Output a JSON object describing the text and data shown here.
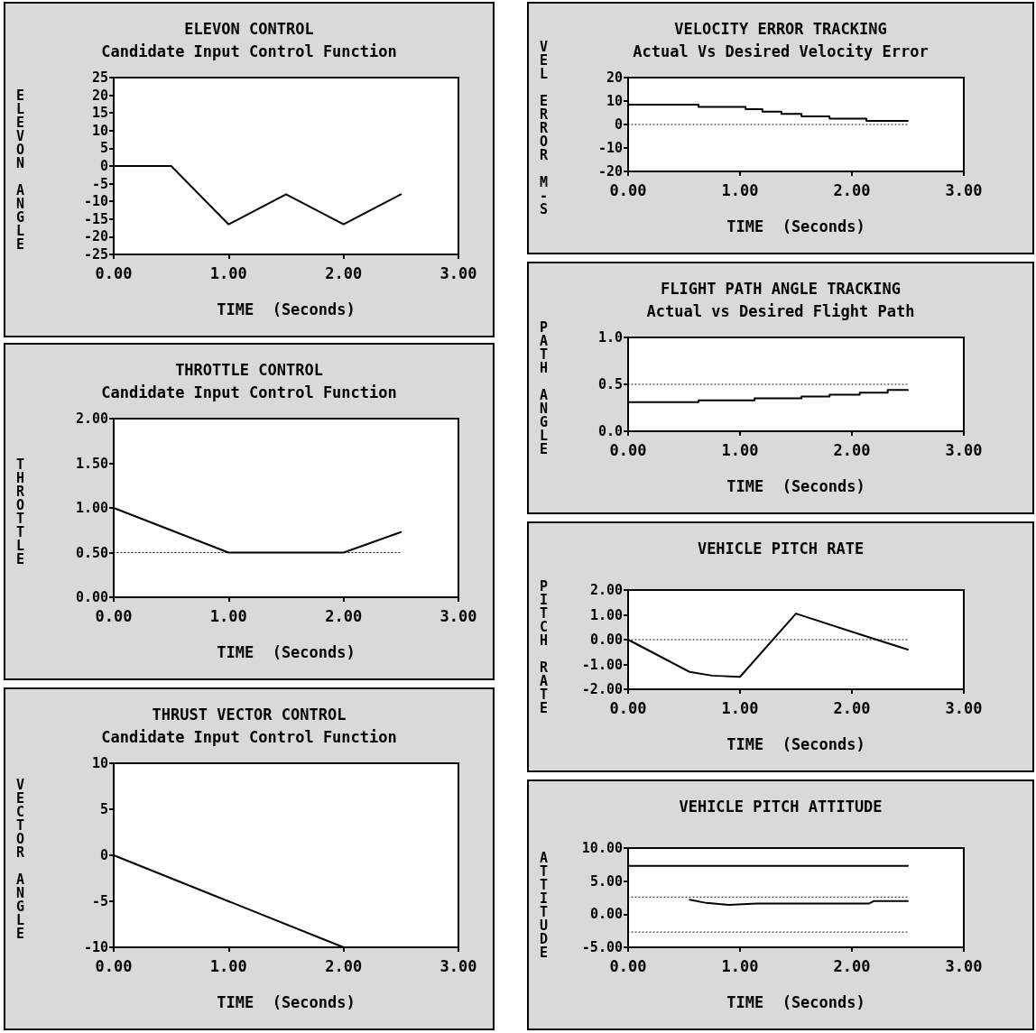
{
  "chart_data": [
    {
      "type": "line",
      "title": "ELEVON CONTROL",
      "subtitle": "Candidate Input Control Function",
      "xlabel": "TIME  (Seconds)",
      "ylabel": "ELEVON ANGLE",
      "xlim": [
        0,
        3
      ],
      "xticks": [
        {
          "value": 0,
          "label": "0.00"
        },
        {
          "value": 1,
          "label": "1.00"
        },
        {
          "value": 2,
          "label": "2.00"
        },
        {
          "value": 3,
          "label": "3.00"
        }
      ],
      "ylim": [
        -25,
        25
      ],
      "yticks": [
        -25,
        -20,
        -15,
        -10,
        -5,
        0,
        5,
        10,
        15,
        20,
        25
      ],
      "marker": "none",
      "series": [
        {
          "color": "#000000",
          "line_style": "solid",
          "x": [
            0,
            0.5,
            1,
            1.5,
            2,
            2.5
          ],
          "values": [
            0,
            0,
            -16.5,
            -8,
            -16.5,
            -8
          ]
        }
      ]
    },
    {
      "type": "line",
      "title": "THROTTLE CONTROL",
      "subtitle": "Candidate Input Control Function",
      "xlabel": "TIME  (Seconds)",
      "ylabel": "THROTTLE",
      "xlim": [
        0,
        3
      ],
      "xticks": [
        {
          "value": 0,
          "label": "0.00"
        },
        {
          "value": 1,
          "label": "1.00"
        },
        {
          "value": 2,
          "label": "2.00"
        },
        {
          "value": 3,
          "label": "3.00"
        }
      ],
      "ylim": [
        0,
        2
      ],
      "yticks": [
        {
          "value": 0,
          "label": "0.00"
        },
        {
          "value": 0.5,
          "label": "0.50"
        },
        {
          "value": 1,
          "label": "1.00"
        },
        {
          "value": 1.5,
          "label": "1.50"
        },
        {
          "value": 2,
          "label": "2.00"
        }
      ],
      "marker": "none",
      "series": [
        {
          "color": "#000000",
          "line_style": "dotted",
          "x": [
            0,
            2.5
          ],
          "values": [
            0.5,
            0.5
          ]
        },
        {
          "color": "#000000",
          "line_style": "solid",
          "x": [
            0,
            1,
            2,
            2.5
          ],
          "values": [
            1,
            0.5,
            0.5,
            0.73
          ]
        }
      ]
    },
    {
      "type": "line",
      "title": "THRUST VECTOR CONTROL",
      "subtitle": "Candidate Input Control Function",
      "xlabel": "TIME  (Seconds)",
      "ylabel": "VECTOR ANGLE",
      "xlim": [
        0,
        3
      ],
      "xticks": [
        {
          "value": 0,
          "label": "0.00"
        },
        {
          "value": 1,
          "label": "1.00"
        },
        {
          "value": 2,
          "label": "2.00"
        },
        {
          "value": 3,
          "label": "3.00"
        }
      ],
      "ylim": [
        -10,
        10
      ],
      "yticks": [
        -10,
        -5,
        0,
        5,
        10
      ],
      "marker": "none",
      "series": [
        {
          "color": "#000000",
          "line_style": "solid",
          "x": [
            0,
            2
          ],
          "values": [
            0,
            -10
          ]
        }
      ]
    },
    {
      "type": "line",
      "title": "VELOCITY ERROR TRACKING",
      "subtitle": "Actual Vs Desired Velocity Error",
      "xlabel": "TIME  (Seconds)",
      "ylabel": "VEL ERROR M-S",
      "xlim": [
        0,
        3
      ],
      "xticks": [
        {
          "value": 0,
          "label": "0.00"
        },
        {
          "value": 1,
          "label": "1.00"
        },
        {
          "value": 2,
          "label": "2.00"
        },
        {
          "value": 3,
          "label": "3.00"
        }
      ],
      "ylim": [
        -20,
        20
      ],
      "yticks": [
        -20,
        -10,
        0,
        10,
        20
      ],
      "marker": "none",
      "series": [
        {
          "color": "#000000",
          "line_style": "dotted",
          "x": [
            0,
            2.5
          ],
          "values": [
            0,
            0
          ]
        },
        {
          "type": "step",
          "color": "#000000",
          "line_style": "solid",
          "x": [
            0,
            0.63,
            1.05,
            1.2,
            1.37,
            1.55,
            1.8,
            2.13,
            2.5
          ],
          "values": [
            8.5,
            7.5,
            6.5,
            5.5,
            4.5,
            3.5,
            2.5,
            1.5,
            1.5
          ]
        }
      ]
    },
    {
      "type": "line",
      "title": "FLIGHT PATH ANGLE TRACKING",
      "subtitle": "Actual vs Desired Flight Path",
      "xlabel": "TIME  (Seconds)",
      "ylabel": "PATH ANGLE",
      "xlim": [
        0,
        3
      ],
      "xticks": [
        {
          "value": 0,
          "label": "0.00"
        },
        {
          "value": 1,
          "label": "1.00"
        },
        {
          "value": 2,
          "label": "2.00"
        },
        {
          "value": 3,
          "label": "3.00"
        }
      ],
      "ylim": [
        0,
        1
      ],
      "yticks": [
        {
          "value": 0,
          "label": "0.0"
        },
        {
          "value": 0.5,
          "label": "0.5"
        },
        {
          "value": 1,
          "label": "1.0"
        }
      ],
      "marker": "none",
      "series": [
        {
          "color": "#000000",
          "line_style": "dotted",
          "x": [
            0,
            2.5
          ],
          "values": [
            0.5,
            0.5
          ]
        },
        {
          "type": "step",
          "color": "#000000",
          "line_style": "solid",
          "x": [
            0,
            0.63,
            1.13,
            1.55,
            1.8,
            2.07,
            2.32,
            2.5
          ],
          "values": [
            0.31,
            0.33,
            0.35,
            0.37,
            0.39,
            0.41,
            0.44,
            0.44
          ]
        }
      ]
    },
    {
      "type": "line",
      "title": "VEHICLE PITCH RATE",
      "xlabel": "TIME  (Seconds)",
      "ylabel": "PITCH RATE",
      "xlim": [
        0,
        3
      ],
      "xticks": [
        {
          "value": 0,
          "label": "0.00"
        },
        {
          "value": 1,
          "label": "1.00"
        },
        {
          "value": 2,
          "label": "2.00"
        },
        {
          "value": 3,
          "label": "3.00"
        }
      ],
      "ylim": [
        -2,
        2
      ],
      "yticks": [
        {
          "value": -2,
          "label": "-2.00"
        },
        {
          "value": -1,
          "label": "-1.00"
        },
        {
          "value": 0,
          "label": "0.00"
        },
        {
          "value": 1,
          "label": "1.00"
        },
        {
          "value": 2,
          "label": "2.00"
        }
      ],
      "marker": "none",
      "series": [
        {
          "color": "#000000",
          "line_style": "dotted",
          "x": [
            0,
            2.5
          ],
          "values": [
            0,
            0
          ]
        },
        {
          "color": "#000000",
          "line_style": "solid",
          "x": [
            0,
            0.55,
            0.75,
            1,
            1.5,
            2.15,
            2.5
          ],
          "values": [
            0,
            -1.3,
            -1.45,
            -1.5,
            1.05,
            0.1,
            -0.4
          ]
        }
      ]
    },
    {
      "type": "line",
      "title": "VEHICLE PITCH ATTITUDE",
      "xlabel": "TIME  (Seconds)",
      "ylabel": "ATTITUDE",
      "xlim": [
        0,
        3
      ],
      "xticks": [
        {
          "value": 0,
          "label": "0.00"
        },
        {
          "value": 1,
          "label": "1.00"
        },
        {
          "value": 2,
          "label": "2.00"
        },
        {
          "value": 3,
          "label": "3.00"
        }
      ],
      "ylim": [
        -5,
        10
      ],
      "yticks": [
        {
          "value": -5,
          "label": "-5.00"
        },
        {
          "value": 0,
          "label": "0.00"
        },
        {
          "value": 5,
          "label": "5.00"
        },
        {
          "value": 10,
          "label": "10.00"
        }
      ],
      "marker": "none",
      "series": [
        {
          "color": "#000000",
          "line_style": "solid",
          "x": [
            0,
            2.5
          ],
          "values": [
            7.3,
            7.3
          ]
        },
        {
          "color": "#000000",
          "line_style": "dotted",
          "x": [
            0,
            2.5
          ],
          "values": [
            2.6,
            2.6
          ]
        },
        {
          "color": "#000000",
          "line_style": "dotted",
          "x": [
            0,
            2.5
          ],
          "values": [
            -2.7,
            -2.7
          ]
        },
        {
          "color": "#000000",
          "line_style": "solid",
          "x": [
            0.55,
            0.7,
            0.9,
            1.15,
            2.15,
            2.2,
            2.5
          ],
          "values": [
            2.2,
            1.7,
            1.4,
            1.6,
            1.6,
            2,
            2
          ]
        }
      ]
    }
  ]
}
